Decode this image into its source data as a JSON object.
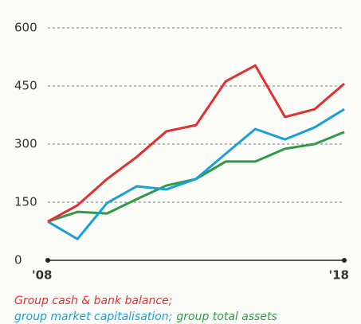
{
  "chart_data": {
    "type": "line",
    "categories": [
      "'08",
      null,
      null,
      null,
      null,
      null,
      null,
      null,
      null,
      null,
      "'18"
    ],
    "series": [
      {
        "name": "Group cash & bank balance;",
        "color": "#e03030",
        "values": [
          100,
          142,
          210,
          267,
          333,
          349,
          462,
          503,
          370,
          390,
          456
        ]
      },
      {
        "name": "group market capitalisation;",
        "color": "#1aa0d8",
        "values": [
          100,
          55,
          148,
          191,
          183,
          210,
          275,
          339,
          312,
          343,
          390
        ]
      },
      {
        "name": "group total assets",
        "color": "#2e9a48",
        "values": [
          100,
          125,
          121,
          158,
          193,
          210,
          255,
          255,
          288,
          300,
          331
        ]
      }
    ],
    "ylim": [
      0,
      600
    ],
    "yticks": [
      0,
      150,
      300,
      450,
      600
    ],
    "grid": true
  }
}
